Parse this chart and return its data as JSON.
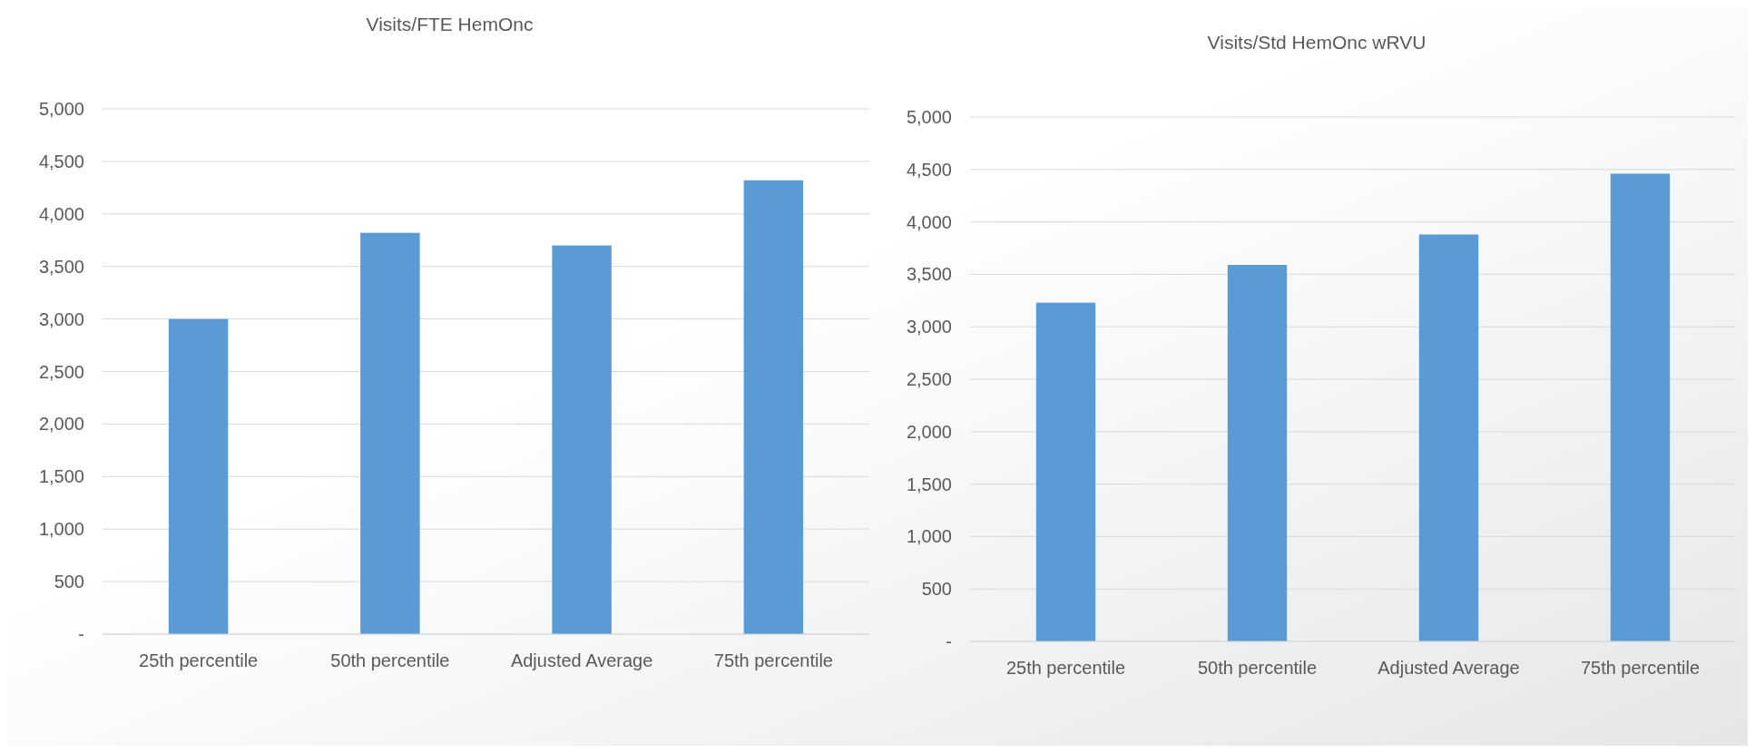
{
  "chart_data": [
    {
      "type": "bar",
      "title": "Visits/FTE HemOnc",
      "categories": [
        "25th percentile",
        "50th percentile",
        "Adjusted Average",
        "75th percentile"
      ],
      "values": [
        3000,
        3820,
        3700,
        4320
      ],
      "color": "#5b9bd5",
      "ylim": [
        0,
        5000
      ],
      "yticks": [
        {
          "value": 0,
          "label": "-"
        },
        500,
        {
          "value": 1000,
          "label": "1,000"
        },
        {
          "value": 1500,
          "label": "1,500"
        },
        {
          "value": 2000,
          "label": "2,000"
        },
        {
          "value": 2500,
          "label": "2,500"
        },
        {
          "value": 3000,
          "label": "3,000"
        },
        {
          "value": 3500,
          "label": "3,500"
        },
        {
          "value": 4000,
          "label": "4,000"
        },
        {
          "value": 4500,
          "label": "4,500"
        },
        {
          "value": 5000,
          "label": "5,000"
        }
      ],
      "grid": "y"
    },
    {
      "type": "bar",
      "title": "Visits/Std HemOnc wRVU",
      "categories": [
        "25th percentile",
        "50th percentile",
        "Adjusted Average",
        "75th percentile"
      ],
      "values": [
        3230,
        3590,
        3880,
        4460
      ],
      "color": "#5b9bd5",
      "ylim": [
        0,
        5000
      ],
      "yticks": [
        {
          "value": 0,
          "label": "-"
        },
        500,
        {
          "value": 1000,
          "label": "1,000"
        },
        {
          "value": 1500,
          "label": "1,500"
        },
        {
          "value": 2000,
          "label": "2,000"
        },
        {
          "value": 2500,
          "label": "2,500"
        },
        {
          "value": 3000,
          "label": "3,000"
        },
        {
          "value": 3500,
          "label": "3,500"
        },
        {
          "value": 4000,
          "label": "4,000"
        },
        {
          "value": 4500,
          "label": "4,500"
        },
        {
          "value": 5000,
          "label": "5,000"
        }
      ],
      "grid": "y"
    }
  ]
}
